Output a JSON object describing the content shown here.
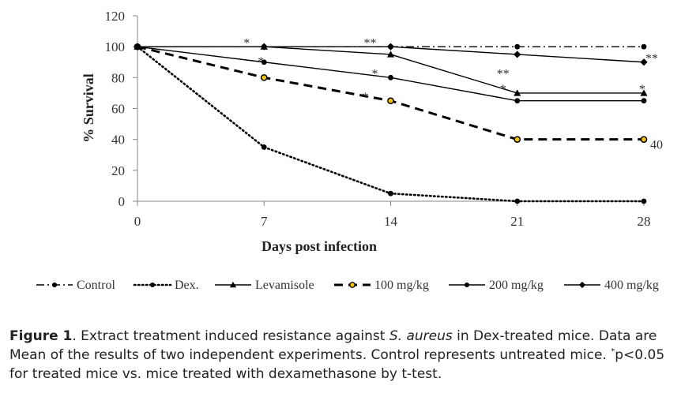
{
  "chart_data": {
    "type": "line",
    "xlabel": "Days post infection",
    "ylabel": "% Survival",
    "x": [
      0,
      7,
      14,
      21,
      28
    ],
    "xticks": [
      "0",
      "7",
      "14",
      "21",
      "28"
    ],
    "ylim": [
      0,
      120
    ],
    "yticks": [
      "0",
      "20",
      "40",
      "60",
      "80",
      "100",
      "120"
    ],
    "grid": false,
    "legend_position": "bottom",
    "series": [
      {
        "name": "Control",
        "values": [
          100,
          100,
          100,
          100,
          100
        ],
        "style": "dashdot",
        "marker": "circle",
        "color": "#000000"
      },
      {
        "name": "Dex.",
        "values": [
          100,
          35,
          5,
          0,
          0
        ],
        "style": "dotted",
        "marker": "circle",
        "color": "#000000"
      },
      {
        "name": "Levamisole",
        "values": [
          100,
          100,
          95,
          70,
          70
        ],
        "style": "solid",
        "marker": "triangle",
        "color": "#000000"
      },
      {
        "name": "100 mg/kg",
        "values": [
          100,
          80,
          65,
          40,
          40
        ],
        "style": "dashed",
        "marker": "circle-yellow",
        "color": "#000000"
      },
      {
        "name": "200 mg/kg",
        "values": [
          100,
          90,
          80,
          65,
          65
        ],
        "style": "solid",
        "marker": "circle",
        "color": "#000000"
      },
      {
        "name": "400 mg/kg",
        "values": [
          100,
          100,
          100,
          95,
          90
        ],
        "style": "solid",
        "marker": "diamond",
        "color": "#000000"
      }
    ],
    "annotations": [
      {
        "text": "*",
        "x": 7,
        "y": 103
      },
      {
        "text": "**",
        "x": 14,
        "y": 103
      },
      {
        "text": "*",
        "x": 7,
        "y": 91
      },
      {
        "text": "*",
        "x": 14,
        "y": 83
      },
      {
        "text": "*",
        "x": 14,
        "y": 68
      },
      {
        "text": "**",
        "x": 21,
        "y": 83
      },
      {
        "text": "*",
        "x": 21,
        "y": 73
      },
      {
        "text": "**",
        "x": 28,
        "y": 91
      },
      {
        "text": "*",
        "x": 28,
        "y": 73
      },
      {
        "text": "40",
        "x": 28,
        "y": 40
      }
    ]
  },
  "caption": {
    "label": "Figure 1",
    "text_1": ". Extract treatment induced resistance against ",
    "organism": "S. aureus",
    "text_2": " in Dex-treated mice. Data are Mean of the results of two independent experiments. Control represents untreated mice. ",
    "superscript": "*",
    "text_3": "p<0.05 for treated mice vs. mice treated with dexamethasone by t-test."
  }
}
